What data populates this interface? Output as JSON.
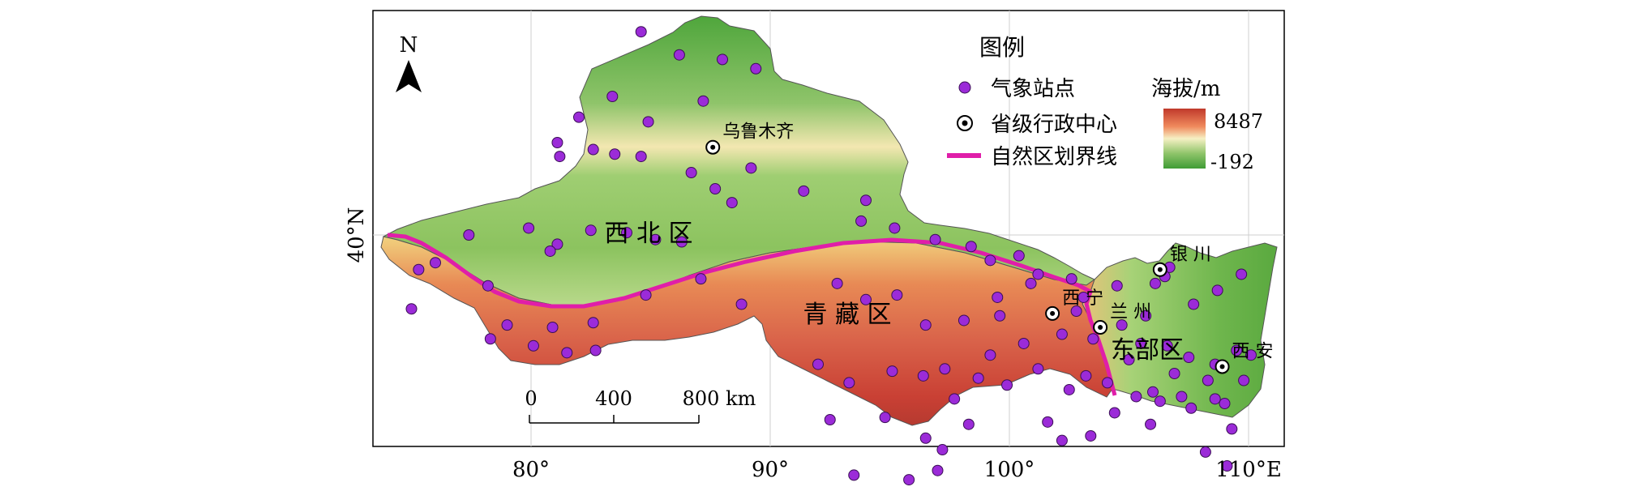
{
  "map": {
    "north_label": "N",
    "region_labels": {
      "northwest": "西 北 区",
      "tibet": "青 藏 区",
      "east": "东部区"
    },
    "cities": [
      {
        "name": "乌鲁木齐",
        "lon": 87.6,
        "lat": 43.8
      },
      {
        "name": "银 川",
        "lon": 106.3,
        "lat": 38.5
      },
      {
        "name": "西 宁",
        "lon": 101.8,
        "lat": 36.6
      },
      {
        "name": "兰 州",
        "lon": 103.8,
        "lat": 36.0
      },
      {
        "name": "西 安",
        "lon": 108.9,
        "lat": 34.3
      }
    ],
    "stations": [
      [
        84.6,
        48.8
      ],
      [
        86.2,
        47.8
      ],
      [
        88.0,
        47.6
      ],
      [
        89.4,
        47.2
      ],
      [
        83.4,
        46.0
      ],
      [
        87.2,
        45.8
      ],
      [
        82.0,
        45.1
      ],
      [
        84.9,
        44.9
      ],
      [
        81.1,
        44.0
      ],
      [
        82.6,
        43.7
      ],
      [
        83.5,
        43.5
      ],
      [
        84.6,
        43.4
      ],
      [
        86.7,
        42.7
      ],
      [
        89.2,
        42.9
      ],
      [
        81.2,
        43.4
      ],
      [
        87.7,
        42.0
      ],
      [
        88.4,
        41.4
      ],
      [
        91.4,
        41.9
      ],
      [
        94.0,
        41.5
      ],
      [
        79.9,
        40.3
      ],
      [
        81.1,
        39.6
      ],
      [
        82.5,
        40.2
      ],
      [
        84.0,
        40.1
      ],
      [
        85.2,
        39.8
      ],
      [
        86.3,
        39.7
      ],
      [
        77.4,
        40.0
      ],
      [
        76.0,
        38.8
      ],
      [
        80.8,
        39.3
      ],
      [
        78.2,
        37.8
      ],
      [
        79.0,
        36.1
      ],
      [
        80.9,
        36.0
      ],
      [
        82.6,
        36.2
      ],
      [
        84.8,
        37.4
      ],
      [
        87.1,
        38.1
      ],
      [
        88.8,
        37.0
      ],
      [
        75.3,
        38.5
      ],
      [
        75.0,
        36.8
      ],
      [
        78.3,
        35.5
      ],
      [
        80.1,
        35.2
      ],
      [
        81.5,
        34.9
      ],
      [
        82.7,
        35.0
      ],
      [
        93.8,
        40.6
      ],
      [
        95.2,
        40.3
      ],
      [
        96.9,
        39.8
      ],
      [
        98.4,
        39.5
      ],
      [
        99.2,
        38.9
      ],
      [
        100.4,
        39.1
      ],
      [
        101.2,
        38.3
      ],
      [
        102.6,
        38.1
      ],
      [
        103.1,
        37.3
      ],
      [
        92.8,
        37.9
      ],
      [
        94.0,
        37.2
      ],
      [
        95.3,
        37.4
      ],
      [
        96.5,
        36.1
      ],
      [
        98.1,
        36.3
      ],
      [
        99.6,
        36.5
      ],
      [
        100.6,
        35.3
      ],
      [
        102.2,
        35.7
      ],
      [
        103.5,
        35.5
      ],
      [
        104.7,
        36.1
      ],
      [
        105.7,
        36.5
      ],
      [
        106.1,
        37.9
      ],
      [
        106.7,
        38.6
      ],
      [
        107.7,
        37.0
      ],
      [
        108.7,
        37.6
      ],
      [
        109.7,
        38.3
      ],
      [
        105.5,
        35.3
      ],
      [
        106.6,
        35.2
      ],
      [
        107.5,
        34.7
      ],
      [
        108.6,
        34.4
      ],
      [
        109.5,
        35.0
      ],
      [
        110.1,
        34.8
      ],
      [
        92.0,
        34.4
      ],
      [
        93.3,
        33.6
      ],
      [
        95.1,
        34.1
      ],
      [
        96.4,
        33.9
      ],
      [
        97.3,
        34.2
      ],
      [
        98.7,
        33.8
      ],
      [
        99.9,
        33.5
      ],
      [
        101.2,
        34.2
      ],
      [
        102.5,
        33.3
      ],
      [
        103.2,
        33.9
      ],
      [
        104.1,
        33.6
      ],
      [
        105.3,
        33.0
      ],
      [
        106.0,
        33.2
      ],
      [
        107.2,
        33.0
      ],
      [
        108.3,
        33.7
      ],
      [
        109.0,
        32.7
      ],
      [
        92.5,
        32.0
      ],
      [
        94.8,
        32.1
      ],
      [
        96.5,
        31.2
      ],
      [
        97.2,
        30.7
      ],
      [
        98.3,
        31.8
      ],
      [
        101.6,
        31.9
      ],
      [
        102.2,
        31.1
      ],
      [
        103.4,
        31.3
      ],
      [
        104.4,
        32.3
      ],
      [
        105.9,
        31.8
      ],
      [
        106.3,
        32.8
      ],
      [
        107.6,
        32.5
      ],
      [
        108.6,
        32.9
      ],
      [
        109.3,
        31.6
      ],
      [
        97.0,
        29.8
      ],
      [
        95.8,
        29.4
      ],
      [
        93.5,
        29.6
      ],
      [
        108.2,
        30.6
      ],
      [
        109.1,
        30.0
      ],
      [
        99.5,
        37.3
      ],
      [
        100.9,
        37.9
      ],
      [
        104.5,
        37.8
      ],
      [
        106.5,
        38.2
      ],
      [
        102.8,
        36.7
      ],
      [
        105.0,
        34.6
      ],
      [
        106.9,
        34.0
      ],
      [
        109.8,
        33.7
      ],
      [
        99.2,
        34.8
      ],
      [
        97.7,
        32.9
      ]
    ]
  },
  "scale_bar": {
    "ticks": [
      "0",
      "400",
      "800 km"
    ]
  },
  "legend": {
    "title": "图例",
    "items": [
      {
        "label": "气象站点",
        "symbol": "purple-dot",
        "color": "#9b2bd8"
      },
      {
        "label": "省级行政中心",
        "symbol": "bullseye"
      },
      {
        "label": "自然区划界线",
        "symbol": "magenta-line",
        "color": "#e01ea9"
      }
    ]
  },
  "elevation": {
    "title": "海拔/m",
    "max_label": "8487",
    "min_label": "-192",
    "color_high": "#c0392b",
    "color_mid": "#f6f0c4",
    "color_low": "#3f9c35"
  },
  "axes": {
    "x_labels": [
      "80°",
      "90°",
      "100°",
      "110°E"
    ],
    "x_values": [
      80,
      90,
      100,
      110
    ],
    "y_labels": [
      "40°N"
    ],
    "y_values": [
      40
    ]
  }
}
